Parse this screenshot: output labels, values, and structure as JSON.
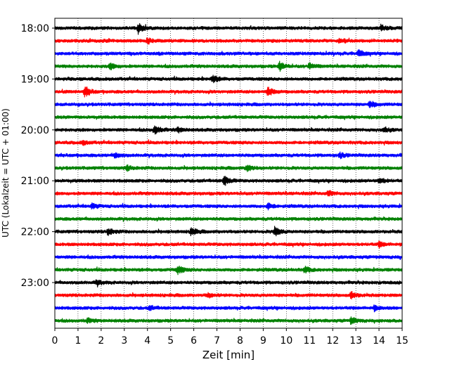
{
  "chart_data": {
    "type": "line",
    "title": "",
    "xlabel": "Zeit  [min]",
    "ylabel": "UTC (Lokalzeit = UTC + 01:00)",
    "xlim": [
      0,
      15
    ],
    "x_ticks": [
      0,
      1,
      2,
      3,
      4,
      5,
      6,
      7,
      8,
      9,
      10,
      11,
      12,
      13,
      14,
      15
    ],
    "y_ticks": [
      {
        "label": "18:00",
        "row": 0
      },
      {
        "label": "19:00",
        "row": 4
      },
      {
        "label": "20:00",
        "row": 8
      },
      {
        "label": "21:00",
        "row": 12
      },
      {
        "label": "22:00",
        "row": 16
      },
      {
        "label": "23:00",
        "row": 20
      }
    ],
    "grid": {
      "x": true,
      "style": "dotted"
    },
    "trace_colors": [
      "#000000",
      "#ff0000",
      "#0000ff",
      "#008000"
    ],
    "traces_start": "18:00",
    "trace_interval_min": 15,
    "trace_count": 24,
    "events": [
      {
        "row": 0,
        "t": 3.6,
        "amp": 1.0
      },
      {
        "row": 0,
        "t": 14.1,
        "amp": 0.6
      },
      {
        "row": 1,
        "t": 4.0,
        "amp": 0.5
      },
      {
        "row": 1,
        "t": 12.3,
        "amp": 0.5
      },
      {
        "row": 2,
        "t": 13.1,
        "amp": 0.7
      },
      {
        "row": 3,
        "t": 2.4,
        "amp": 0.6
      },
      {
        "row": 3,
        "t": 9.7,
        "amp": 0.9
      },
      {
        "row": 3,
        "t": 11.0,
        "amp": 0.6
      },
      {
        "row": 4,
        "t": 6.8,
        "amp": 0.8
      },
      {
        "row": 5,
        "t": 1.3,
        "amp": 1.0
      },
      {
        "row": 5,
        "t": 9.2,
        "amp": 0.9
      },
      {
        "row": 6,
        "t": 13.6,
        "amp": 0.6
      },
      {
        "row": 8,
        "t": 4.3,
        "amp": 0.9
      },
      {
        "row": 8,
        "t": 5.3,
        "amp": 0.5
      },
      {
        "row": 8,
        "t": 14.2,
        "amp": 0.5
      },
      {
        "row": 9,
        "t": 1.2,
        "amp": 0.4
      },
      {
        "row": 10,
        "t": 2.6,
        "amp": 0.5
      },
      {
        "row": 10,
        "t": 12.3,
        "amp": 0.5
      },
      {
        "row": 11,
        "t": 3.1,
        "amp": 0.5
      },
      {
        "row": 11,
        "t": 8.3,
        "amp": 0.7
      },
      {
        "row": 12,
        "t": 7.3,
        "amp": 1.0
      },
      {
        "row": 12,
        "t": 14.0,
        "amp": 0.6
      },
      {
        "row": 13,
        "t": 11.8,
        "amp": 0.5
      },
      {
        "row": 14,
        "t": 1.6,
        "amp": 0.5
      },
      {
        "row": 14,
        "t": 9.2,
        "amp": 0.6
      },
      {
        "row": 16,
        "t": 2.3,
        "amp": 0.7
      },
      {
        "row": 16,
        "t": 5.9,
        "amp": 0.8
      },
      {
        "row": 16,
        "t": 9.5,
        "amp": 1.0
      },
      {
        "row": 17,
        "t": 14.0,
        "amp": 0.5
      },
      {
        "row": 19,
        "t": 5.3,
        "amp": 0.9
      },
      {
        "row": 19,
        "t": 10.8,
        "amp": 0.6
      },
      {
        "row": 20,
        "t": 1.8,
        "amp": 0.5
      },
      {
        "row": 21,
        "t": 12.8,
        "amp": 0.7
      },
      {
        "row": 21,
        "t": 6.6,
        "amp": 0.4
      },
      {
        "row": 22,
        "t": 4.1,
        "amp": 0.4
      },
      {
        "row": 22,
        "t": 13.8,
        "amp": 0.5
      },
      {
        "row": 23,
        "t": 12.8,
        "amp": 0.7
      },
      {
        "row": 23,
        "t": 1.4,
        "amp": 0.4
      }
    ]
  }
}
